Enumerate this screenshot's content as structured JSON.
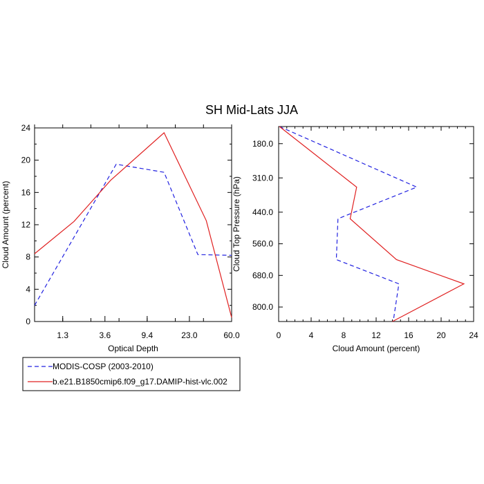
{
  "title": "SH Mid-Lats JJA",
  "colors": {
    "modis": "#2020e0",
    "model": "#e02020"
  },
  "chart_data": [
    {
      "type": "line",
      "xlabel": "Optical Depth",
      "ylabel": "Cloud Amount (percent)",
      "categories": [
        "1.3",
        "3.6",
        "9.4",
        "23.0",
        "60.0"
      ],
      "xlim": [
        0,
        7
      ],
      "ylim": [
        0,
        24
      ],
      "yticks": [
        0,
        4,
        8,
        12,
        16,
        20,
        24
      ],
      "x": [
        0,
        1,
        2,
        3,
        4,
        5,
        6,
        7
      ],
      "series": [
        {
          "name": "MODIS-COSP (2003-2010)",
          "key": "modis",
          "dash": true,
          "x": [
            0,
            2.9,
            4.6,
            5.8,
            7.0
          ],
          "values": [
            2.0,
            19.5,
            18.5,
            8.3,
            8.2
          ]
        },
        {
          "name": "b.e21.B1850cmip6.f09_g17.DAMIP-hist-vlc.002",
          "key": "model",
          "dash": false,
          "x": [
            0,
            1.4,
            2.7,
            4.6,
            6.1,
            7.0
          ],
          "values": [
            8.4,
            12.4,
            17.5,
            23.4,
            12.5,
            0.5
          ]
        }
      ],
      "grid": false
    },
    {
      "type": "line",
      "xlabel": "Cloud Amount (percent)",
      "ylabel": "Cloud Top Pressure (hPa)",
      "xlim": [
        0,
        24
      ],
      "xticks": [
        0,
        4,
        8,
        12,
        16,
        20,
        24
      ],
      "yticks": [
        180.0,
        310.0,
        440.0,
        560.0,
        680.0,
        800.0
      ],
      "ylim": [
        115,
        855
      ],
      "inverted_y": true,
      "series": [
        {
          "name": "MODIS-COSP (2003-2010)",
          "key": "modis",
          "dash": true,
          "x": [
            0.1,
            17.0,
            7.3,
            7.1,
            14.8,
            14.1
          ],
          "y": [
            115,
            345,
            465,
            620,
            712,
            855
          ]
        },
        {
          "name": "b.e21.B1850cmip6.f09_g17.DAMIP-hist-vlc.002",
          "key": "model",
          "dash": false,
          "x": [
            0.1,
            9.6,
            8.8,
            14.5,
            22.8,
            14.0
          ],
          "y": [
            115,
            345,
            465,
            620,
            712,
            855
          ]
        }
      ],
      "grid": false
    }
  ],
  "legend": {
    "entries": [
      {
        "label": "MODIS-COSP (2003-2010)",
        "key": "modis",
        "dash": true
      },
      {
        "label": "b.e21.B1850cmip6.f09_g17.DAMIP-hist-vlc.002",
        "key": "model",
        "dash": false
      }
    ]
  }
}
